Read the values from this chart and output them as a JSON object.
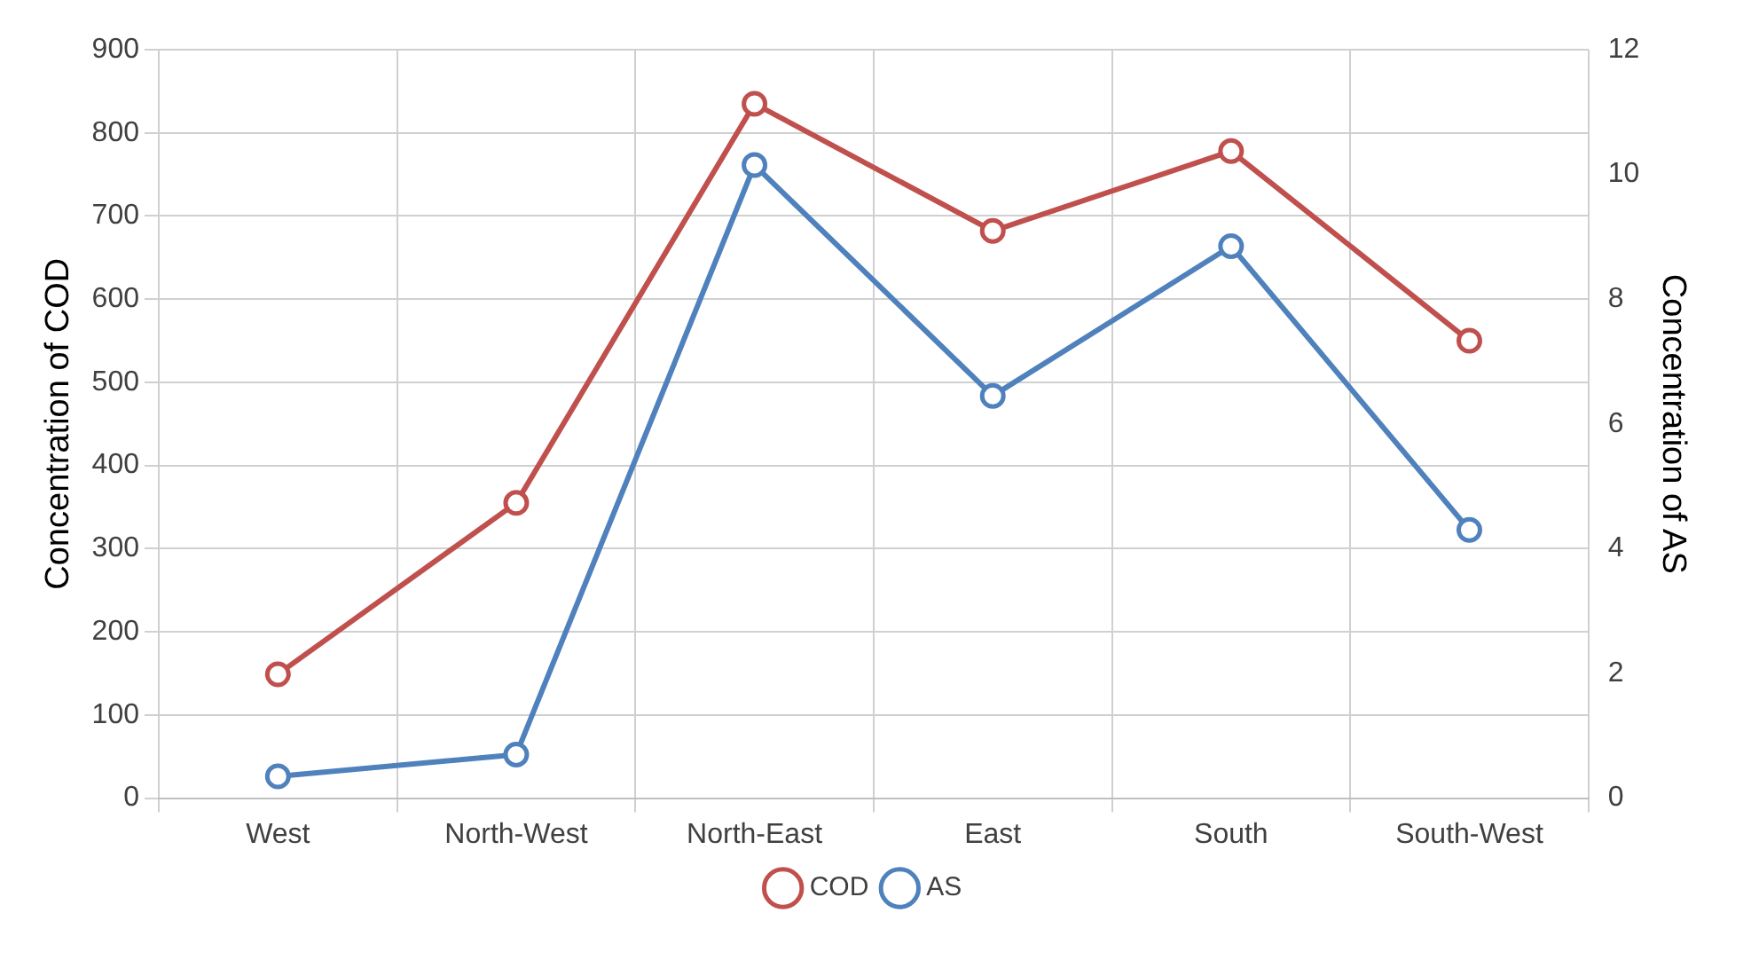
{
  "chart_data": {
    "type": "line",
    "ylabel": "Concentration of COD",
    "y2label": "Concentration of AS",
    "categories": [
      "West",
      "North-West",
      "North-East",
      "East",
      "South",
      "South-West"
    ],
    "series": [
      {
        "name": "COD",
        "color": "#c0504d",
        "values": [
          149,
          355,
          835,
          682,
          778,
          550
        ]
      },
      {
        "name": "AS",
        "color": "#4f81bd",
        "axis": "y2",
        "values": [
          0.35,
          0.7,
          10.15,
          6.45,
          8.85,
          4.3
        ]
      }
    ],
    "ylim": [
      0,
      900
    ],
    "yticks": [
      0,
      100,
      200,
      300,
      400,
      500,
      600,
      700,
      800,
      900
    ],
    "y2lim": [
      0,
      12
    ],
    "y2ticks": [
      0,
      2,
      4,
      6,
      8,
      10,
      12
    ],
    "grid": true,
    "legend": "bottom",
    "marker": "circle",
    "line_style": "solid"
  }
}
